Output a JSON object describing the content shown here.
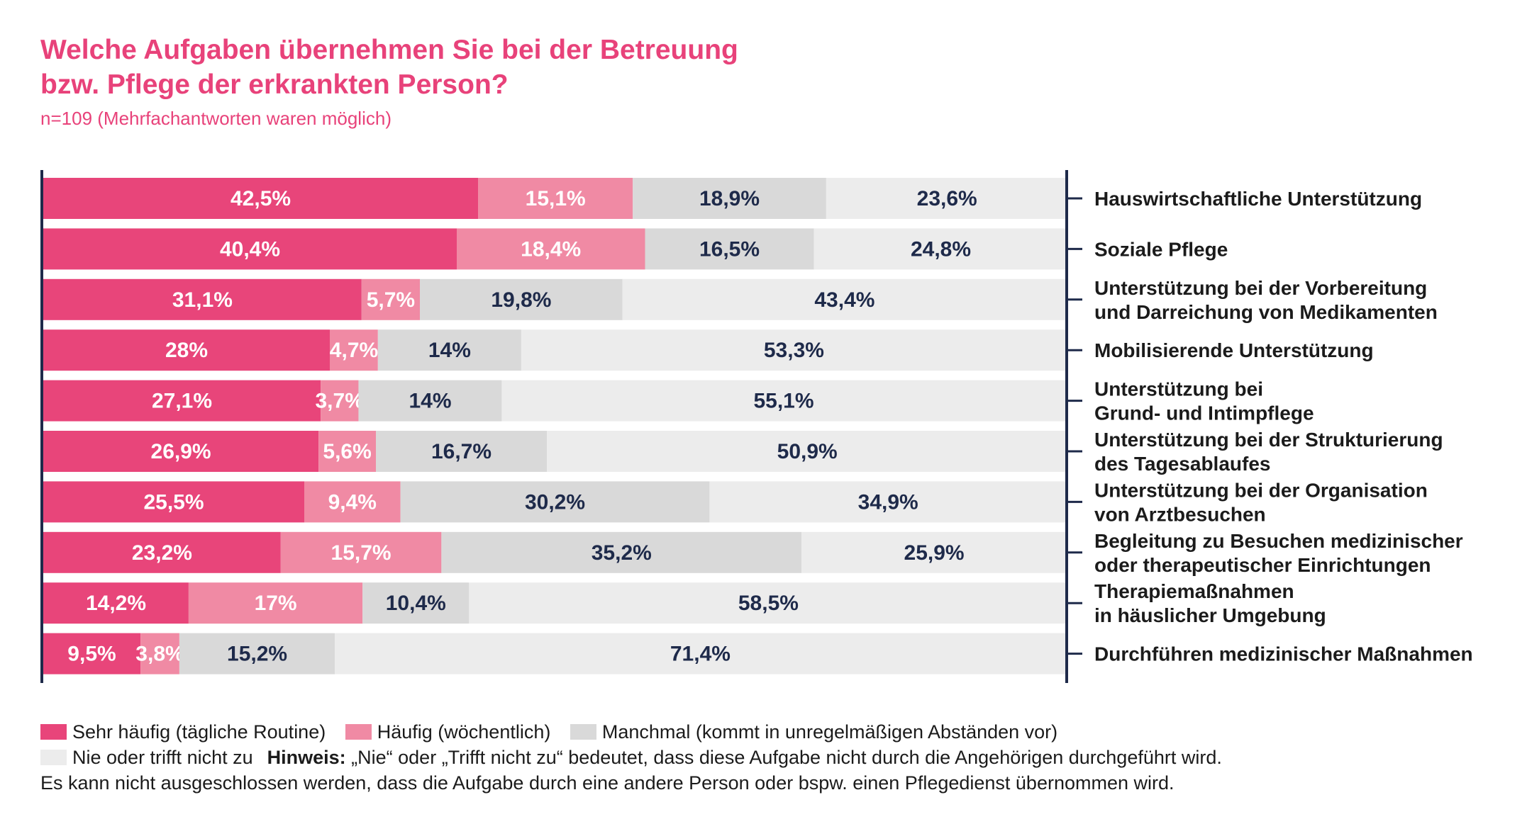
{
  "title_lines": [
    "Welche Aufgaben übernehmen Sie bei der Betreuung",
    "bzw. Pflege der erkrankten Person?"
  ],
  "subtitle": "n=109 (Mehrfachantworten waren möglich)",
  "colors": {
    "sehr_haeufig": "#e8457a",
    "haeufig": "#f08aa4",
    "manchmal": "#d9d9d9",
    "nie": "#ececec",
    "label_light": "#ffffff",
    "label_dark": "#1e2a4a",
    "axis": "#1e2a4a",
    "title": "#e8427a"
  },
  "chart_data": {
    "type": "bar",
    "orientation": "horizontal",
    "stacked": true,
    "unit": "%",
    "xlim": [
      0,
      100
    ],
    "categories": [
      [
        "Hauswirtschaftliche Unterstützung"
      ],
      [
        "Soziale Pflege"
      ],
      [
        "Unterstützung bei der Vorbereitung",
        "und Darreichung von Medikamenten"
      ],
      [
        "Mobilisierende Unterstützung"
      ],
      [
        "Unterstützung bei",
        "Grund- und Intimpflege"
      ],
      [
        "Unterstützung bei der Strukturierung",
        "des Tagesablaufes"
      ],
      [
        "Unterstützung bei der Organisation",
        "von Arztbesuchen"
      ],
      [
        "Begleitung zu Besuchen medizinischer",
        "oder therapeutischer Einrichtungen"
      ],
      [
        "Therapiemaßnahmen",
        "in häuslicher Umgebung"
      ],
      [
        "Durchführen medizinischer Maßnahmen"
      ]
    ],
    "series": [
      {
        "name": "Sehr häufig (tägliche Routine)",
        "values": [
          42.5,
          40.4,
          31.1,
          28,
          27.1,
          26.9,
          25.5,
          23.2,
          14.2,
          9.5
        ],
        "labels": [
          "42,5%",
          "40,4%",
          "31,1%",
          "28%",
          "27,1%",
          "26,9%",
          "25,5%",
          "23,2%",
          "14,2%",
          "9,5%"
        ]
      },
      {
        "name": "Häufig (wöchentlich)",
        "values": [
          15.1,
          18.4,
          5.7,
          4.7,
          3.7,
          5.6,
          9.4,
          15.7,
          17,
          3.8
        ],
        "labels": [
          "15,1%",
          "18,4%",
          "5,7%",
          "4,7%",
          "3,7%",
          "5,6%",
          "9,4%",
          "15,7%",
          "17%",
          "3,8%"
        ]
      },
      {
        "name": "Manchmal (kommt in unregelmäßigen Abständen vor)",
        "values": [
          18.9,
          16.5,
          19.8,
          14,
          14,
          16.7,
          30.2,
          35.2,
          10.4,
          15.2
        ],
        "labels": [
          "18,9%",
          "16,5%",
          "19,8%",
          "14%",
          "14%",
          "16,7%",
          "30,2%",
          "35,2%",
          "10,4%",
          "15,2%"
        ]
      },
      {
        "name": "Nie oder trifft nicht zu",
        "values": [
          23.6,
          24.8,
          43.4,
          53.3,
          55.1,
          50.9,
          34.9,
          25.9,
          58.5,
          71.4
        ],
        "labels": [
          "23,6%",
          "24,8%",
          "43,4%",
          "53,3%",
          "55,1%",
          "50,9%",
          "34,9%",
          "25,9%",
          "58,5%",
          "71,4%"
        ]
      }
    ]
  },
  "legend": {
    "items": [
      {
        "label": "Sehr häufig (tägliche Routine)",
        "color": "#e8457a"
      },
      {
        "label": "Häufig (wöchentlich)",
        "color": "#f08aa4"
      },
      {
        "label": "Manchmal (kommt in unregelmäßigen Abständen vor)",
        "color": "#d9d9d9"
      },
      {
        "label": "Nie oder trifft nicht zu",
        "color": "#ececec"
      }
    ],
    "note_label": "Hinweis:",
    "note_text": " „Nie“ oder „Trifft nicht zu“ bedeutet, dass diese Aufgabe nicht durch die Angehörigen durchgeführt wird.",
    "note_line2": "Es kann nicht ausgeschlossen werden, dass die Aufgabe durch eine andere Person oder bspw. einen Pflegedienst übernommen wird."
  }
}
